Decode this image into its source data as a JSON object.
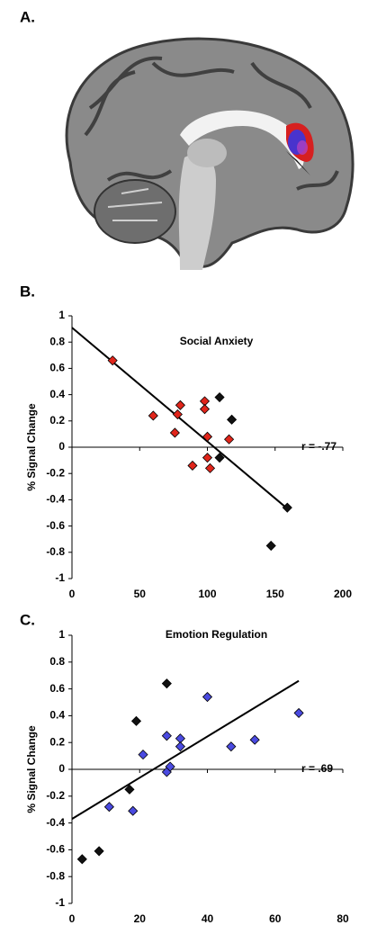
{
  "image_panel_label": "A.",
  "chart_data": [
    {
      "type": "scatter",
      "panel_label": "B.",
      "title": "Social Anxiety",
      "y_label": "% Signal Change",
      "annotation": "r = -.77",
      "xlim": [
        0,
        200
      ],
      "xticks": [
        0,
        50,
        100,
        150,
        200
      ],
      "ylim": [
        -1,
        1
      ],
      "yticks": [
        -1,
        -0.8,
        -0.6,
        -0.4,
        -0.2,
        0,
        0.2,
        0.4,
        0.6,
        0.8,
        1
      ],
      "series": [
        {
          "color": "#e0251b",
          "x": [
            30,
            60,
            80,
            78,
            76,
            98,
            98,
            100,
            116,
            89,
            100,
            102
          ],
          "values": [
            0.66,
            0.24,
            0.32,
            0.25,
            0.11,
            0.35,
            0.29,
            0.08,
            0.06,
            -0.14,
            -0.08,
            -0.16
          ]
        },
        {
          "color": "#111111",
          "x": [
            109,
            118,
            109,
            159,
            147
          ],
          "values": [
            0.38,
            0.21,
            -0.08,
            -0.46,
            -0.75
          ]
        }
      ],
      "fit_line": {
        "x": [
          0,
          157
        ],
        "values": [
          0.91,
          -0.45
        ]
      }
    },
    {
      "type": "scatter",
      "panel_label": "C.",
      "title": "Emotion Regulation",
      "y_label": "% Signal Change",
      "annotation": "r = .69",
      "xlim": [
        0,
        80
      ],
      "xticks": [
        0,
        20,
        40,
        60,
        80
      ],
      "ylim": [
        -1,
        1
      ],
      "yticks": [
        -1,
        -0.8,
        -0.6,
        -0.4,
        -0.2,
        0,
        0.2,
        0.4,
        0.6,
        0.8,
        1
      ],
      "series": [
        {
          "color": "#4a4ae0",
          "x": [
            11,
            18,
            21,
            28,
            28,
            29,
            32,
            32,
            40,
            47,
            54,
            67
          ],
          "values": [
            -0.28,
            -0.31,
            0.11,
            0.25,
            -0.02,
            0.02,
            0.23,
            0.17,
            0.54,
            0.17,
            0.22,
            0.42
          ]
        },
        {
          "color": "#111111",
          "x": [
            3,
            8,
            17,
            19,
            28
          ],
          "values": [
            -0.67,
            -0.61,
            -0.15,
            0.36,
            0.64
          ]
        }
      ],
      "fit_line": {
        "x": [
          0,
          67
        ],
        "values": [
          -0.37,
          0.66
        ]
      }
    }
  ]
}
